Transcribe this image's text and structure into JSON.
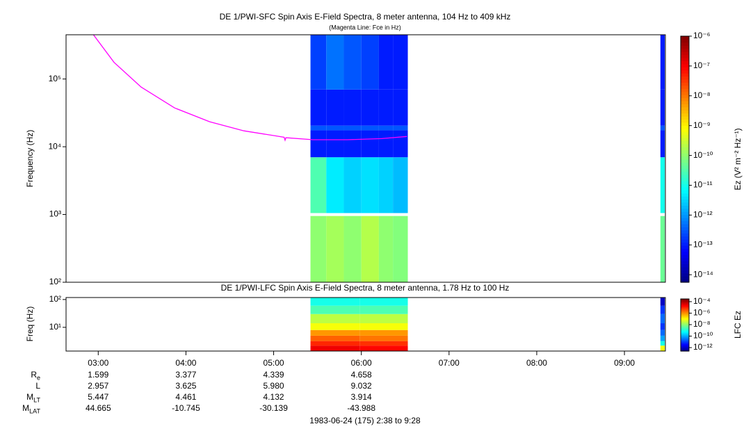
{
  "chart_data": [
    {
      "type": "spectrogram",
      "title": "DE 1/PWI-SFC  Spin Axis E-Field Spectra, 8 meter antenna, 104 Hz to 409 kHz",
      "subtitle": "(Magenta Line: Fce in Hz)",
      "y_label": "Frequency (Hz)",
      "log_y": true,
      "xlim": [
        2.633,
        9.467
      ],
      "ylim": [
        100,
        450000
      ],
      "yticks": [
        {
          "value": 100,
          "label": "10²"
        },
        {
          "value": 1000,
          "label": "10³"
        },
        {
          "value": 10000,
          "label": "10⁴"
        },
        {
          "value": 100000,
          "label": "10⁵"
        }
      ],
      "x_bins": [
        [
          5.42,
          5.6
        ],
        [
          5.6,
          5.8
        ],
        [
          5.8,
          6.0
        ],
        [
          6.0,
          6.2
        ],
        [
          6.2,
          6.36
        ],
        [
          6.36,
          6.53
        ],
        [
          9.41,
          9.46
        ]
      ],
      "y_bins": [
        [
          100,
          950
        ],
        [
          1050,
          7000
        ],
        [
          7000,
          17500
        ],
        [
          17500,
          20500
        ],
        [
          20500,
          70000
        ],
        [
          70000,
          450000
        ]
      ],
      "z": [
        [
          1e-10,
          3e-11,
          1e-13,
          3e-13,
          1e-13,
          2e-13
        ],
        [
          1.5e-10,
          5e-12,
          1e-13,
          3e-13,
          1e-13,
          5e-13
        ],
        [
          1e-10,
          3e-12,
          1e-13,
          3e-13,
          1e-13,
          3e-13
        ],
        [
          2e-10,
          4e-12,
          1e-13,
          3e-13,
          1e-13,
          2e-13
        ],
        [
          1e-10,
          3e-12,
          1e-13,
          3e-13,
          1e-13,
          1e-13
        ],
        [
          8e-11,
          2e-12,
          1e-13,
          3e-13,
          1e-13,
          1e-13
        ],
        [
          5e-11,
          1e-11,
          1e-13,
          3e-13,
          1e-13,
          1e-13
        ]
      ],
      "colorbar": {
        "label": "Ez (V² m⁻² Hz⁻¹)",
        "clim": [
          5.6e-15,
          1e-06
        ],
        "ticks": [
          {
            "value": 1e-06,
            "label": "10⁻⁶"
          },
          {
            "value": 1e-07,
            "label": "10⁻⁷"
          },
          {
            "value": 1e-08,
            "label": "10⁻⁸"
          },
          {
            "value": 1e-09,
            "label": "10⁻⁹"
          },
          {
            "value": 1e-10,
            "label": "10⁻¹⁰"
          },
          {
            "value": 1e-11,
            "label": "10⁻¹¹"
          },
          {
            "value": 1e-12,
            "label": "10⁻¹²"
          },
          {
            "value": 1e-13,
            "label": "10⁻¹³"
          },
          {
            "value": 1e-14,
            "label": "10⁻¹⁴"
          }
        ]
      },
      "series": [
        {
          "color": "#ff00ff",
          "x": [
            2.945,
            3.18,
            3.49,
            3.87,
            4.27,
            4.66,
            5.05,
            5.12,
            5.13,
            5.14,
            5.45,
            5.84,
            6.23,
            6.52
          ],
          "values": [
            450000,
            176000,
            76000,
            37500,
            23400,
            17200,
            14300,
            13800,
            12500,
            13600,
            12700,
            12700,
            13200,
            14200
          ]
        }
      ]
    },
    {
      "type": "spectrogram",
      "title": "DE 1/PWI-LFC  Spin Axis E-Field Spectra, 8 meter antenna, 1.78 Hz to 100 Hz",
      "y_label": "Freq (Hz)",
      "log_y": true,
      "xlim": [
        2.633,
        9.467
      ],
      "ylim": [
        1.4,
        118
      ],
      "yticks": [
        {
          "value": 10,
          "label": "10¹"
        },
        {
          "value": 100,
          "label": "10²"
        }
      ],
      "xticks": [
        {
          "value": 3,
          "label": "03:00"
        },
        {
          "value": 4,
          "label": "04:00"
        },
        {
          "value": 5,
          "label": "05:00"
        },
        {
          "value": 6,
          "label": "06:00"
        },
        {
          "value": 7,
          "label": "07:00"
        },
        {
          "value": 8,
          "label": "08:00"
        },
        {
          "value": 9,
          "label": "09:00"
        }
      ],
      "x_bins": [
        [
          5.42,
          5.98
        ],
        [
          5.98,
          6.53
        ],
        [
          9.41,
          9.46
        ]
      ],
      "y_bins": [
        [
          1.4,
          2.2
        ],
        [
          2.2,
          3.2
        ],
        [
          3.2,
          5
        ],
        [
          5,
          8
        ],
        [
          8,
          14
        ],
        [
          14,
          30
        ],
        [
          30,
          60
        ],
        [
          60,
          118
        ]
      ],
      "z": [
        [
          3e-05,
          1e-05,
          3e-06,
          1e-06,
          1e-07,
          3e-08,
          3e-09,
          1e-09
        ],
        [
          2e-05,
          8e-06,
          2e-06,
          1e-06,
          1e-07,
          3e-08,
          3e-09,
          1e-09
        ],
        [
          1e-07,
          1e-09,
          1e-10,
          3e-11,
          1e-11,
          3e-11,
          1e-11,
          1e-12
        ]
      ],
      "colorbar": {
        "label": "LFC Ez",
        "clim": [
          2.5e-13,
          0.0003
        ],
        "ticks": [
          {
            "value": 0.0001,
            "label": "10⁻⁴"
          },
          {
            "value": 1e-06,
            "label": "10⁻⁶"
          },
          {
            "value": 1e-08,
            "label": "10⁻⁸"
          },
          {
            "value": 1e-10,
            "label": "10⁻¹⁰"
          },
          {
            "value": 1e-12,
            "label": "10⁻¹²"
          }
        ]
      }
    }
  ],
  "ephemeris": {
    "rows": [
      {
        "label": "R",
        "sub": "e",
        "values": [
          1.599,
          3.377,
          4.339,
          4.658
        ]
      },
      {
        "label": "L",
        "values": [
          2.957,
          3.625,
          5.98,
          9.032
        ]
      },
      {
        "label": "M",
        "sub": "LT",
        "values": [
          5.447,
          4.461,
          4.132,
          3.914
        ]
      },
      {
        "label": "M",
        "sub": "LAT",
        "values": [
          44.665,
          -10.745,
          -30.139,
          -43.988
        ]
      }
    ],
    "value_labels": [
      [
        "1.599",
        "3.377",
        "4.339",
        "4.658"
      ],
      [
        "2.957",
        "3.625",
        "5.980",
        "9.032"
      ],
      [
        "5.447",
        "4.461",
        "4.132",
        "3.914"
      ],
      [
        "44.665",
        "-10.745",
        "-30.139",
        "-43.988"
      ]
    ],
    "footer": "1983-06-24 (175) 2:38 to 9:28"
  }
}
